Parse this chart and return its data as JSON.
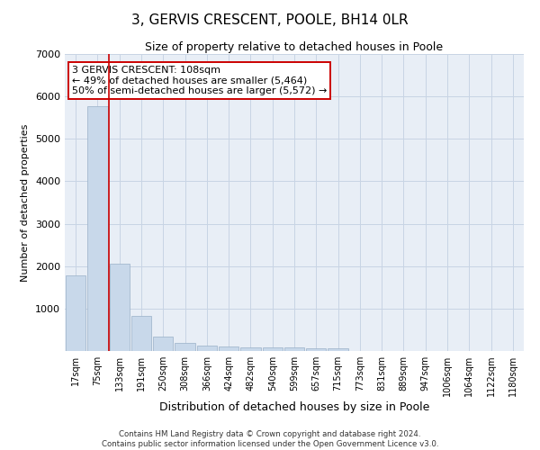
{
  "title": "3, GERVIS CRESCENT, POOLE, BH14 0LR",
  "subtitle": "Size of property relative to detached houses in Poole",
  "xlabel": "Distribution of detached houses by size in Poole",
  "ylabel": "Number of detached properties",
  "bar_color": "#c8d8ea",
  "bar_edgecolor": "#9ab0c8",
  "grid_color": "#c8d4e4",
  "background_color": "#e8eef6",
  "categories": [
    "17sqm",
    "75sqm",
    "133sqm",
    "191sqm",
    "250sqm",
    "308sqm",
    "366sqm",
    "424sqm",
    "482sqm",
    "540sqm",
    "599sqm",
    "657sqm",
    "715sqm",
    "773sqm",
    "831sqm",
    "889sqm",
    "947sqm",
    "1006sqm",
    "1064sqm",
    "1122sqm",
    "1180sqm"
  ],
  "values": [
    1780,
    5780,
    2060,
    820,
    340,
    190,
    130,
    105,
    95,
    80,
    75,
    65,
    60,
    0,
    0,
    0,
    0,
    0,
    0,
    0,
    0
  ],
  "ylim": [
    0,
    7000
  ],
  "yticks": [
    0,
    1000,
    2000,
    3000,
    4000,
    5000,
    6000,
    7000
  ],
  "property_line_x": 1.5,
  "property_line_color": "#cc0000",
  "annotation_text": "3 GERVIS CRESCENT: 108sqm\n← 49% of detached houses are smaller (5,464)\n50% of semi-detached houses are larger (5,572) →",
  "annotation_fontsize": 8,
  "footnote": "Contains HM Land Registry data © Crown copyright and database right 2024.\nContains public sector information licensed under the Open Government Licence v3.0.",
  "title_fontsize": 11,
  "subtitle_fontsize": 9,
  "xlabel_fontsize": 9,
  "ylabel_fontsize": 8
}
